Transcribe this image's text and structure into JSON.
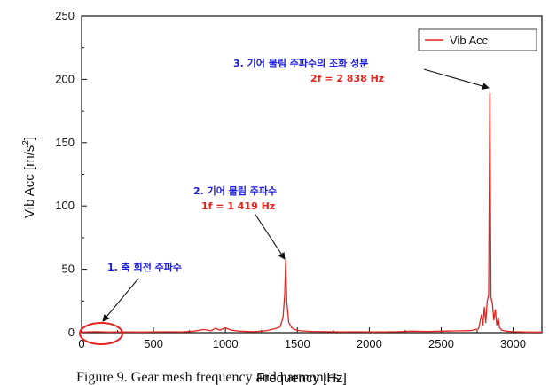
{
  "chart_data": {
    "type": "line",
    "xlabel": "Frequency [Hz]",
    "ylabel": "Vib Acc [m/s²]",
    "ylabel_main": "Vib Acc [m/s",
    "ylabel_sup": "2",
    "ylabel_end": "]",
    "xlim": [
      0,
      3200
    ],
    "ylim": [
      0,
      250
    ],
    "xticks": [
      0,
      500,
      1000,
      1500,
      2000,
      2500,
      3000
    ],
    "yticks": [
      0,
      50,
      100,
      150,
      200,
      250
    ],
    "grid": false,
    "legend_position": "top-right",
    "series": [
      {
        "name": "Vib Acc",
        "color": "#e8231e",
        "x": [
          0,
          100,
          200,
          300,
          400,
          500,
          600,
          700,
          780,
          850,
          900,
          930,
          960,
          1000,
          1040,
          1100,
          1200,
          1280,
          1340,
          1380,
          1400,
          1412,
          1419,
          1426,
          1440,
          1460,
          1480,
          1520,
          1600,
          1700,
          1800,
          1900,
          2000,
          2100,
          2200,
          2300,
          2400,
          2500,
          2600,
          2700,
          2760,
          2780,
          2790,
          2800,
          2810,
          2820,
          2830,
          2838,
          2846,
          2856,
          2866,
          2876,
          2886,
          2896,
          2906,
          2920,
          2950,
          3000,
          3100,
          3200
        ],
        "y": [
          0.5,
          0.8,
          0.5,
          0.6,
          0.5,
          0.6,
          0.7,
          0.6,
          1.2,
          2.5,
          1.5,
          3.5,
          2.0,
          3.8,
          2.0,
          1.2,
          0.8,
          1.5,
          3.0,
          4.5,
          12,
          30,
          57,
          25,
          8,
          4,
          2.5,
          1.5,
          1.0,
          0.8,
          0.6,
          0.7,
          0.6,
          0.6,
          0.8,
          1.2,
          1.0,
          1.2,
          1.4,
          1.6,
          3,
          14,
          6,
          20,
          8,
          25,
          30,
          189,
          28,
          23,
          10,
          18,
          6,
          12,
          4,
          2,
          1.2,
          0.8,
          0.5,
          0.4
        ]
      }
    ],
    "annotations": [
      {
        "line1": "1. 축 회전 주파수"
      },
      {
        "line1": "2. 기어 물림 주파수",
        "line2": "1f = 1 419 Hz"
      },
      {
        "line1": "3. 기어 물림 주파수의  조화 성분",
        "line2": "2f = 2 838 Hz"
      }
    ]
  },
  "caption": "Figure 9. Gear mesh frequency and harmonics"
}
